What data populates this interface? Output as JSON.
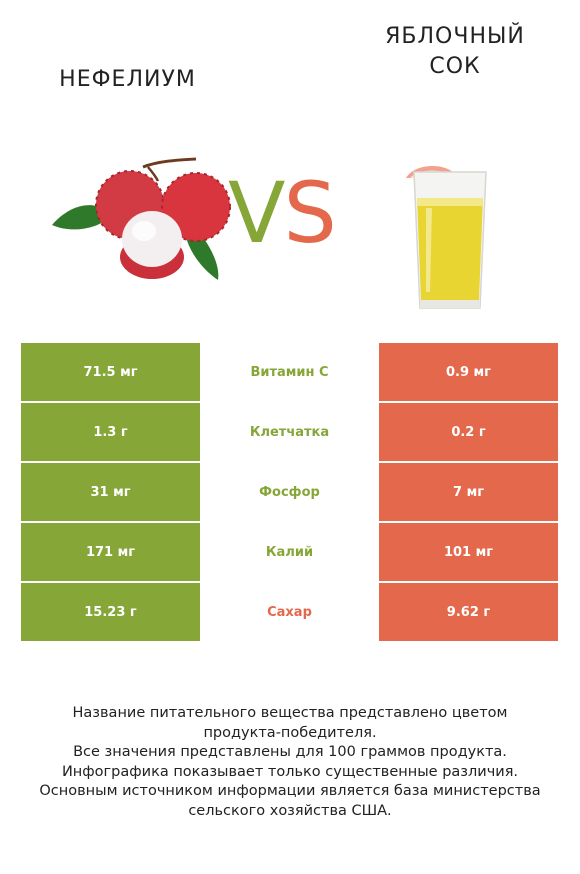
{
  "header": {
    "left_title": "НЕФЕЛИУМ",
    "right_title_line1": "ЯБЛОЧНЫЙ",
    "right_title_line2": "СОК",
    "vs_v": "V",
    "vs_s": "S"
  },
  "images": {
    "left": "lychee-fruit-image",
    "right": "apple-juice-glass-image"
  },
  "colors": {
    "left_accent": "#86a637",
    "right_accent": "#e4694c"
  },
  "rows": [
    {
      "left": "71.5 мг",
      "nutrient": "Витамин C",
      "right": "0.9 мг",
      "winner": "left"
    },
    {
      "left": "1.3 г",
      "nutrient": "Клетчатка",
      "right": "0.2 г",
      "winner": "left"
    },
    {
      "left": "31 мг",
      "nutrient": "Фосфор",
      "right": "7 мг",
      "winner": "left"
    },
    {
      "left": "171 мг",
      "nutrient": "Калий",
      "right": "101 мг",
      "winner": "left"
    },
    {
      "left": "15.23 г",
      "nutrient": "Сахар",
      "right": "9.62 г",
      "winner": "right"
    }
  ],
  "footer": {
    "line1": "Название питательного вещества представлено цветом",
    "line2": "продукта-победителя.",
    "line3": "Все значения представлены для 100 граммов продукта.",
    "line4": "Инфографика показывает только существенные различия.",
    "line5": "Основным источником информации является база министерства",
    "line6": "сельского хозяйства США."
  }
}
